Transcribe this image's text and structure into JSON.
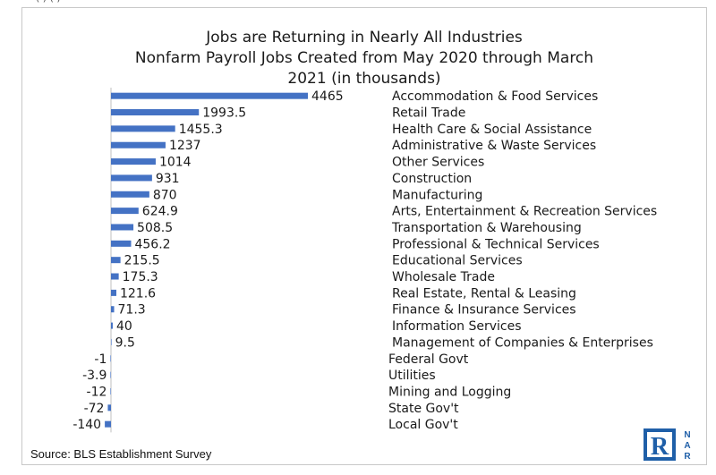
{
  "header_fragment": "(       )        (               )",
  "chart_data": {
    "type": "bar",
    "orientation": "horizontal",
    "title": "Jobs are Returning in Nearly All Industries",
    "subtitle_line1": "Nonfarm Payroll Jobs Created from May 2020 through March",
    "subtitle_line2": "2021 (in thousands)",
    "categories": [
      "Accommodation & Food Services",
      "Retail Trade",
      "Health Care & Social Assistance",
      "Administrative & Waste Services",
      "Other Services",
      "Construction",
      "Manufacturing",
      "Arts, Entertainment & Recreation Services",
      "Transportation & Warehousing",
      "Professional & Technical Services",
      "Educational Services",
      "Wholesale Trade",
      "Real Estate, Rental & Leasing",
      "Finance & Insurance Services",
      "Information Services",
      "Management of Companies & Enterprises",
      "Federal Govt",
      "Utilities",
      "Mining and Logging",
      "State Gov't",
      "Local Gov't"
    ],
    "values": [
      4465,
      1993.5,
      1455.3,
      1237,
      1014,
      931,
      870,
      624.9,
      508.5,
      456.2,
      215.5,
      175.3,
      121.6,
      71.3,
      40,
      9.5,
      -1,
      -3.9,
      -12,
      -72,
      -140
    ],
    "value_labels": [
      "4465",
      "1993.5",
      "1455.3",
      "1237",
      "1014",
      "931",
      "870",
      "624.9",
      "508.5",
      "456.2",
      "215.5",
      "175.3",
      "121.6",
      "71.3",
      "40",
      "9.5",
      "-1",
      "-3.9",
      "-12",
      "-72",
      "-140"
    ],
    "bar_color": "#4472C4",
    "axis_color": "#bfbfbf",
    "xlim": [
      -140,
      4465
    ],
    "grid": false,
    "legend": "none"
  },
  "footer": {
    "source": "Source: BLS Establishment Survey"
  },
  "logo": {
    "mark": "R",
    "letters": [
      "N",
      "A",
      "R"
    ],
    "color": "#1f5fa8"
  }
}
